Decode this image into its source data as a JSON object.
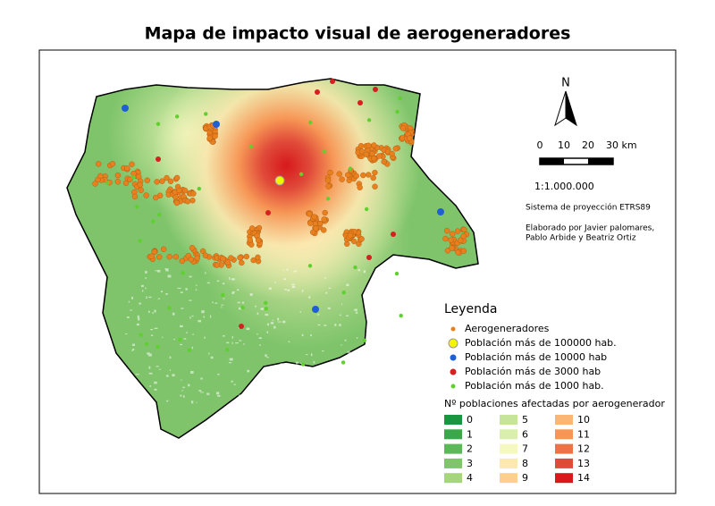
{
  "title": "Mapa de impacto visual de aerogeneradores",
  "north": "N",
  "scale_bar": {
    "labels": [
      "0",
      "10",
      "20",
      "30 km"
    ]
  },
  "scale": "1:1.000.000",
  "projection": "Sistema de proyección ETRS89",
  "credits": [
    "Elaborado por Javier palomares,",
    "Pablo Arbide y Beatriz Ortiz"
  ],
  "legend": {
    "title": "Leyenda",
    "items": [
      {
        "label": "Aerogeneradores",
        "color": "#e8801e"
      },
      {
        "label": "Población más de 100000 hab.",
        "color": "#f5f500"
      },
      {
        "label": "Población más de 10000 hab",
        "color": "#1f5fd6"
      },
      {
        "label": "Población más de 3000 hab",
        "color": "#d42020"
      },
      {
        "label": "Población más de 1000 hab.",
        "color": "#5fd030"
      }
    ],
    "ramp_title": "Nº poblaciones afectadas por aerogenerador",
    "classes": [
      {
        "label": "0",
        "color": "#1a9641"
      },
      {
        "label": "1",
        "color": "#3aa84a"
      },
      {
        "label": "2",
        "color": "#5db85a"
      },
      {
        "label": "3",
        "color": "#80c56b"
      },
      {
        "label": "4",
        "color": "#a5d67d"
      },
      {
        "label": "5",
        "color": "#c6e59a"
      },
      {
        "label": "6",
        "color": "#dbefad"
      },
      {
        "label": "7",
        "color": "#f5f9c0"
      },
      {
        "label": "8",
        "color": "#fde8b0"
      },
      {
        "label": "9",
        "color": "#fdd08d"
      },
      {
        "label": "10",
        "color": "#fbb673"
      },
      {
        "label": "11",
        "color": "#f69655"
      },
      {
        "label": "12",
        "color": "#ec7345"
      },
      {
        "label": "13",
        "color": "#e04a39"
      },
      {
        "label": "14",
        "color": "#d7191c"
      }
    ]
  }
}
